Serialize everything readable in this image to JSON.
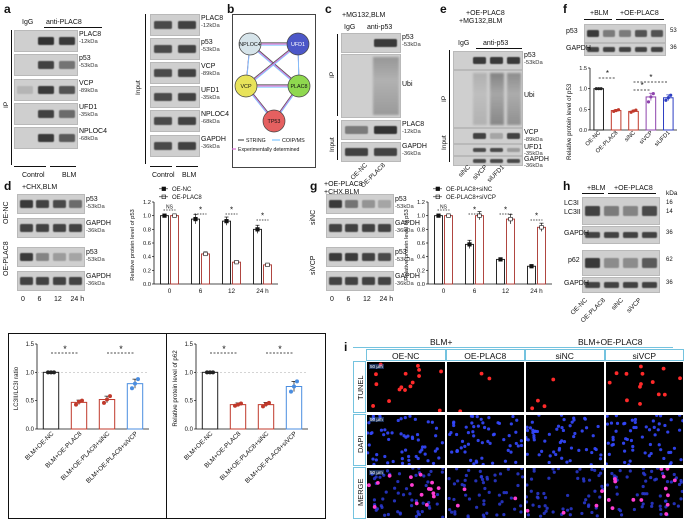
{
  "panel_a": {
    "letter": "a",
    "ip_label": "IP",
    "input_label": "Input",
    "igg": "IgG",
    "anti": "anti-PLAC8",
    "ip_bands": [
      {
        "name": "PLAC8",
        "kda": "-12kDa"
      },
      {
        "name": "p53",
        "kda": "-53kDa"
      },
      {
        "name": "VCP",
        "kda": "-89kDa"
      },
      {
        "name": "UFD1",
        "kda": "-35kDa"
      },
      {
        "name": "NPLOC4",
        "kda": "-68kDa"
      }
    ],
    "input_bands": [
      {
        "name": "PLAC8",
        "kda": "-12kDa"
      },
      {
        "name": "p53",
        "kda": "-53kDa"
      },
      {
        "name": "VCP",
        "kda": "-89kDa"
      },
      {
        "name": "UFD1",
        "kda": "-35kDa"
      },
      {
        "name": "NPLOC4",
        "kda": "-68kDa"
      },
      {
        "name": "GAPDH",
        "kda": "-36kDa"
      }
    ],
    "x_control": "Control",
    "x_blm": "BLM"
  },
  "panel_b": {
    "letter": "b",
    "nodes": [
      "NPLOC4",
      "UFD1",
      "VCP",
      "PLAC8",
      "TP53"
    ],
    "legend": [
      "STRING",
      "COIP/MS",
      "Experimentally determined"
    ],
    "colors": {
      "string": "#555555",
      "coip": "#7fc6ff",
      "exp": "#d96bd6"
    }
  },
  "panel_c": {
    "letter": "c",
    "header": "+MG132,BLM",
    "igg": "IgG",
    "anti": "anti-p53",
    "ip_label": "IP",
    "input_label": "Input",
    "bands": [
      {
        "name": "p53",
        "kda": "-53kDa"
      },
      {
        "name": "Ubi",
        "kda": ""
      },
      {
        "name": "PLAC8",
        "kda": "-12kDa"
      },
      {
        "name": "GAPDH",
        "kda": "-36kDa"
      }
    ],
    "x_labels": [
      "OE-NC",
      "OE-PLAC8"
    ]
  },
  "panel_e": {
    "letter": "e",
    "header1": "+OE-PLAC8",
    "header2": "+MG132,BLM",
    "igg": "IgG",
    "anti": "anti-p53",
    "ip_label": "IP",
    "input_label": "Input",
    "bands": [
      {
        "name": "p53",
        "kda": "-53kDa"
      },
      {
        "name": "Ubi",
        "kda": ""
      },
      {
        "name": "VCP",
        "kda": "-89kDa"
      },
      {
        "name": "UFD1",
        "kda": "-35kDa"
      },
      {
        "name": "GAPDH",
        "kda": "-36kDa"
      }
    ],
    "x_labels": [
      "siNC",
      "siVCP",
      "siUFD1"
    ]
  },
  "panel_f": {
    "letter": "f",
    "header_blm": "+BLM",
    "header_oe": "+OE-PLAC8",
    "bands": [
      {
        "name": "p53",
        "kda": "53"
      },
      {
        "name": "GAPDH",
        "kda": "36"
      }
    ],
    "ylabel": "Relative protein level of p53",
    "x_labels": [
      "OE-NC",
      "OE-PLAC8",
      "siNC",
      "siVCP",
      "siUFD1"
    ],
    "ticks": [
      "0.0",
      "0.5",
      "1.0",
      "1.5"
    ],
    "sig": [
      "*",
      "*",
      "*"
    ]
  },
  "panel_d": {
    "letter": "d",
    "header": "+CHX,BLM",
    "row_labels": [
      "OE-NC",
      "OE-PLAC8"
    ],
    "bands": [
      {
        "name": "p53",
        "kda": "-53kDa"
      },
      {
        "name": "GAPDH",
        "kda": "-36kDa"
      },
      {
        "name": "p53",
        "kda": "-53kDa"
      },
      {
        "name": "GAPDH",
        "kda": "-36kDa"
      }
    ],
    "time_labels": [
      "0",
      "6",
      "12",
      "24 h"
    ],
    "legend": [
      "OE-NC",
      "OE-PLAC8"
    ],
    "ylabel": "Relative protein level of p53",
    "ticks": [
      "0.0",
      "0.2",
      "0.4",
      "0.6",
      "0.8",
      "1.0",
      "1.2"
    ],
    "sig": [
      "NS",
      "*",
      "*",
      "*"
    ]
  },
  "panel_g": {
    "letter": "g",
    "header1": "+OE-PLAC8",
    "header2": "+CHX,BLM",
    "row_labels": [
      "siNC",
      "siVCP"
    ],
    "bands": [
      {
        "name": "p53",
        "kda": "-53kDa"
      },
      {
        "name": "GAPDH",
        "kda": "-36kDa"
      },
      {
        "name": "p53",
        "kda": "-53kDa"
      },
      {
        "name": "GAPDH",
        "kda": "-36kDa"
      }
    ],
    "time_labels": [
      "0",
      "6",
      "12",
      "24 h"
    ],
    "legend": [
      "OE-PLAC8+siNC",
      "OE-PLAC8+siVCP"
    ],
    "ylabel": "Relative protein level of p53",
    "ticks": [
      "0.0",
      "0.2",
      "0.4",
      "0.6",
      "0.8",
      "1.0",
      "1.2"
    ],
    "sig": [
      "NS",
      "*",
      "*",
      "*"
    ]
  },
  "panel_h": {
    "letter": "h",
    "header_blm": "+BLM",
    "header_oe": "+OE-PLAC8",
    "kda_head": "kDa",
    "bands": [
      {
        "name": "LC3I",
        "kda": "16"
      },
      {
        "name": "LC3II",
        "kda": "14"
      },
      {
        "name": "GAPDH",
        "kda": "36"
      },
      {
        "name": "p62",
        "kda": "62"
      },
      {
        "name": "GAPDH",
        "kda": "36"
      }
    ],
    "x_labels": [
      "OE-NC",
      "OE-PLAC8",
      "siNC",
      "siVCP"
    ]
  },
  "bottom_left": {
    "ylabel1": "LC3II/LC3I ratio",
    "ylabel2": "Relative protein level of p62",
    "ticks": [
      "0.0",
      "0.5",
      "1.0",
      "1.5"
    ],
    "x_labels": [
      "BLM+OE-NC",
      "BLM+OE-PLAC8",
      "BLM+OE-PLAC8+siNC",
      "BLM+OE-PLAC8+siVCP"
    ],
    "sig": [
      "*",
      "*"
    ]
  },
  "panel_i": {
    "letter": "i",
    "group1": "BLM+",
    "group2": "BLM+OE-PLAC8",
    "columns": [
      "OE-NC",
      "OE-PLAC8",
      "siNC",
      "siVCP"
    ],
    "rows": [
      "TUNEL",
      "DAPI",
      "MERGE"
    ],
    "scale": "50 μm"
  },
  "chart_data": [
    {
      "type": "bar",
      "title": "f",
      "categories": [
        "OE-NC",
        "OE-PLAC8",
        "siNC",
        "siVCP",
        "siUFD1"
      ],
      "values": [
        1.0,
        0.47,
        0.45,
        0.8,
        0.78
      ],
      "points": [
        [
          1.0,
          1.0,
          1.0
        ],
        [
          0.45,
          0.47,
          0.49
        ],
        [
          0.43,
          0.46,
          0.48
        ],
        [
          0.68,
          0.8,
          0.88
        ],
        [
          0.72,
          0.78,
          0.84
        ]
      ],
      "errors": [
        0.0,
        0.03,
        0.03,
        0.09,
        0.07
      ],
      "colors": [
        "#222222",
        "#c0392b",
        "#c0392b",
        "#8e44ad",
        "#2d3ec2"
      ],
      "ylabel": "Relative protein level of p53",
      "ylim": [
        0,
        1.5
      ]
    },
    {
      "type": "bar",
      "title": "d",
      "categories": [
        "0",
        "6",
        "12",
        "24 h"
      ],
      "series": [
        {
          "name": "OE-NC",
          "values": [
            1.0,
            0.95,
            0.92,
            0.8
          ],
          "errors": [
            0.0,
            0.07,
            0.06,
            0.06
          ]
        },
        {
          "name": "OE-PLAC8",
          "values": [
            1.0,
            0.44,
            0.32,
            0.28
          ],
          "errors": [
            0.0,
            0.03,
            0.02,
            0.02
          ]
        }
      ],
      "ylabel": "Relative protein level of p53",
      "ylim": [
        0,
        1.2
      ]
    },
    {
      "type": "bar",
      "title": "g",
      "categories": [
        "0",
        "6",
        "12",
        "24 h"
      ],
      "series": [
        {
          "name": "OE-PLAC8+siNC",
          "values": [
            1.0,
            0.58,
            0.36,
            0.26
          ],
          "errors": [
            0.0,
            0.06,
            0.02,
            0.02
          ]
        },
        {
          "name": "OE-PLAC8+siVCP",
          "values": [
            1.0,
            1.0,
            0.95,
            0.83
          ],
          "errors": [
            0.0,
            0.06,
            0.07,
            0.06
          ]
        }
      ],
      "ylabel": "Relative protein level of p53",
      "ylim": [
        0,
        1.2
      ]
    },
    {
      "type": "bar",
      "title": "LC3II/LC3I ratio",
      "categories": [
        "BLM+OE-NC",
        "BLM+OE-PLAC8",
        "BLM+OE-PLAC8+siNC",
        "BLM+OE-PLAC8+siVCP"
      ],
      "values": [
        1.0,
        0.47,
        0.52,
        0.8
      ],
      "points": [
        [
          1.0,
          1.0,
          1.0
        ],
        [
          0.43,
          0.48,
          0.5
        ],
        [
          0.46,
          0.52,
          0.58
        ],
        [
          0.72,
          0.8,
          0.88
        ]
      ],
      "errors": [
        0.0,
        0.04,
        0.06,
        0.08
      ],
      "colors": [
        "#222222",
        "#c0392b",
        "#c0392b",
        "#4a8de0"
      ],
      "ylabel": "LC3II/LC3I ratio",
      "ylim": [
        0,
        1.5
      ]
    },
    {
      "type": "bar",
      "title": "Relative protein level of p62",
      "categories": [
        "BLM+OE-NC",
        "BLM+OE-PLAC8",
        "BLM+OE-PLAC8+siNC",
        "BLM+OE-PLAC8+siVCP"
      ],
      "values": [
        1.0,
        0.43,
        0.43,
        0.75
      ],
      "points": [
        [
          1.0,
          1.0,
          1.0
        ],
        [
          0.41,
          0.43,
          0.45
        ],
        [
          0.4,
          0.44,
          0.46
        ],
        [
          0.66,
          0.75,
          0.84
        ]
      ],
      "errors": [
        0.0,
        0.03,
        0.04,
        0.09
      ],
      "colors": [
        "#222222",
        "#c0392b",
        "#c0392b",
        "#4a8de0"
      ],
      "ylabel": "Relative protein level of p62",
      "ylim": [
        0,
        1.5
      ]
    }
  ]
}
